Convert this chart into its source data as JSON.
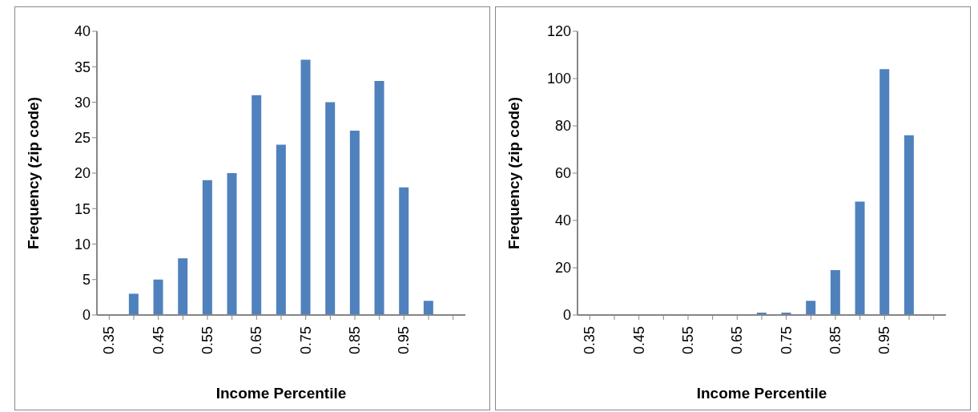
{
  "chart_data": [
    {
      "type": "bar",
      "xlabel": "Income Percentile",
      "ylabel": "Frequency (zip code)",
      "categories": [
        "0.35",
        null,
        "0.45",
        null,
        "0.55",
        null,
        "0.65",
        null,
        "0.75",
        null,
        "0.85",
        null,
        "0.95",
        null,
        null
      ],
      "values": [
        0,
        3,
        5,
        8,
        19,
        20,
        31,
        24,
        36,
        30,
        26,
        33,
        18,
        2,
        0
      ],
      "color": "#4f81bd",
      "ylim": [
        0,
        40
      ],
      "yticks": [
        0,
        5,
        10,
        15,
        20,
        25,
        30,
        35,
        40
      ],
      "grid": false,
      "legend": false
    },
    {
      "type": "bar",
      "xlabel": "Income Percentile",
      "ylabel": "Frequency (zip code)",
      "categories": [
        "0.35",
        null,
        "0.45",
        null,
        "0.55",
        null,
        "0.65",
        null,
        "0.75",
        null,
        "0.85",
        null,
        "0.95",
        null,
        null
      ],
      "values": [
        0,
        0,
        0,
        0,
        0,
        0,
        0,
        1,
        1,
        6,
        19,
        48,
        104,
        76,
        0
      ],
      "color": "#4f81bd",
      "ylim": [
        0,
        120
      ],
      "yticks": [
        0,
        20,
        40,
        60,
        80,
        100,
        120
      ],
      "grid": false,
      "legend": false
    }
  ]
}
